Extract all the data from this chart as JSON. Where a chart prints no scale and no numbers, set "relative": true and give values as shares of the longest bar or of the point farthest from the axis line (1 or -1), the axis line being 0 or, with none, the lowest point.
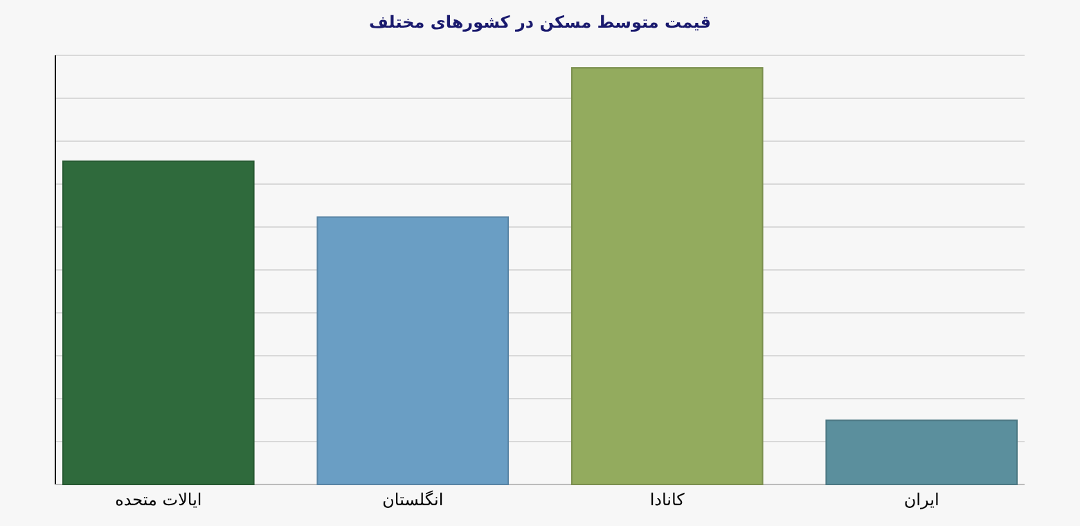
{
  "chart_data": {
    "type": "bar",
    "title": "قیمت متوسط مسکن در کشورهای مختلف",
    "relative": true,
    "grid": "y",
    "categories": [
      "ایالات متحده",
      "انگلستان",
      "کانادا",
      "ایران"
    ],
    "values": [
      0.776,
      0.642,
      1,
      0.154
    ],
    "colors": [
      "#2f6a3c",
      "#6a9ec4",
      "#93ab5e",
      "#5b8f9d"
    ]
  }
}
